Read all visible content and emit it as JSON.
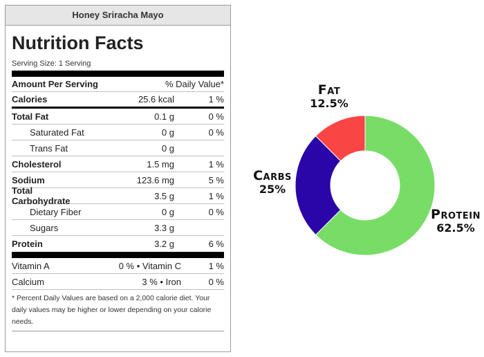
{
  "label": {
    "recipe_title": "Honey Sriracha Mayo",
    "heading": "Nutrition Facts",
    "serving_size": "Serving Size: 1 Serving",
    "amount_per_serving": "Amount Per Serving",
    "daily_value_header": "% Daily Value*",
    "rows": [
      {
        "name": "Calories",
        "amount": "25.6 kcal",
        "dv": "1 %"
      },
      {
        "name": "Total Fat",
        "amount": "0.1 g",
        "dv": "0 %"
      },
      {
        "name": "Saturated Fat",
        "amount": "0 g",
        "dv": "0 %"
      },
      {
        "name": "Trans Fat",
        "amount": "0 g",
        "dv": ""
      },
      {
        "name": "Cholesterol",
        "amount": "1.5 mg",
        "dv": "1 %"
      },
      {
        "name": "Sodium",
        "amount": "123.6 mg",
        "dv": "5 %"
      },
      {
        "name": "Total Carbohydrate",
        "amount": "3.5 g",
        "dv": "1 %"
      },
      {
        "name": "Dietary Fiber",
        "amount": "0 g",
        "dv": "0 %"
      },
      {
        "name": "Sugars",
        "amount": "3.3 g",
        "dv": ""
      },
      {
        "name": "Protein",
        "amount": "3.2 g",
        "dv": "6 %"
      }
    ],
    "vitamins": [
      {
        "left": "Vitamin A",
        "mid": "0 % • Vitamin C",
        "right": "1 %"
      },
      {
        "left": "Calcium",
        "mid": "3 % • Iron",
        "right": "0 %"
      }
    ],
    "footnote": "* Percent Daily Values are based on a 2,000 calorie diet. Your daily values may be higher or lower depending on your calorie needs."
  },
  "chart_data": {
    "type": "pie",
    "donut": true,
    "title": "",
    "slices": [
      {
        "label": "Protein",
        "value": 62.5,
        "display": "62.5%",
        "color": "#77dd66"
      },
      {
        "label": "Carbs",
        "value": 25,
        "display": "25%",
        "color": "#2a05a8"
      },
      {
        "label": "Fat",
        "value": 12.5,
        "display": "12.5%",
        "color": "#fa4545"
      }
    ]
  }
}
